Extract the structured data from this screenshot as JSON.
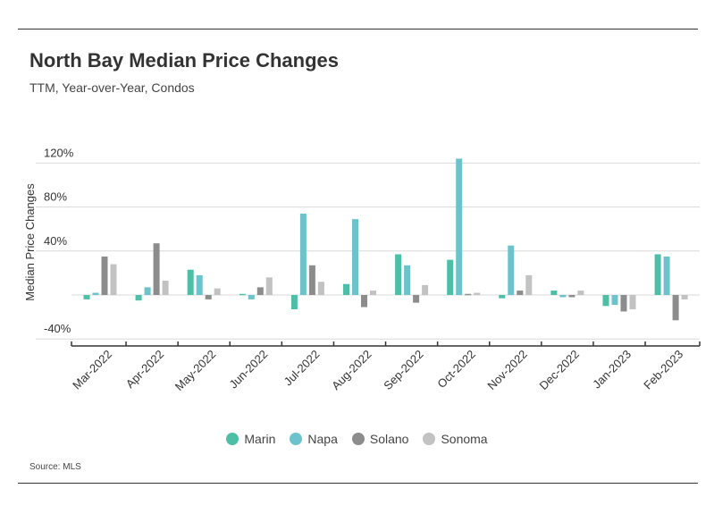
{
  "title": "North Bay Median Price Changes",
  "subtitle": "TTM, Year-over-Year, Condos",
  "source": "Source: MLS",
  "chart_data": {
    "type": "bar",
    "title": "North Bay Median Price Changes",
    "subtitle": "TTM, Year-over-Year, Condos",
    "ylabel": "Median Price Changes",
    "xlabel": "",
    "ylim": [
      -50,
      130
    ],
    "yticks": [
      -40,
      40,
      80,
      120
    ],
    "ytick_labels": [
      "-40%",
      "40%",
      "80%",
      "120%"
    ],
    "grid": true,
    "legend_position": "bottom",
    "categories": [
      "Mar-2022",
      "Apr-2022",
      "May-2022",
      "Jun-2022",
      "Jul-2022",
      "Aug-2022",
      "Sep-2022",
      "Oct-2022",
      "Nov-2022",
      "Dec-2022",
      "Jan-2023",
      "Feb-2023"
    ],
    "series": [
      {
        "name": "Marin",
        "color": "#4cbfa6",
        "values": [
          -4,
          -5,
          23,
          1,
          -13,
          10,
          37,
          32,
          -3,
          4,
          -10,
          37
        ]
      },
      {
        "name": "Napa",
        "color": "#6cc3cb",
        "values": [
          2,
          7,
          18,
          -4,
          74,
          69,
          27,
          124,
          45,
          -2,
          -9,
          35
        ]
      },
      {
        "name": "Solano",
        "color": "#8c8c8c",
        "values": [
          35,
          47,
          -4,
          7,
          27,
          -11,
          -7,
          1,
          4,
          -2,
          -15,
          -23
        ]
      },
      {
        "name": "Sonoma",
        "color": "#c2c2c2",
        "values": [
          28,
          13,
          6,
          16,
          12,
          4,
          9,
          2,
          18,
          4,
          -13,
          -4
        ]
      }
    ]
  }
}
